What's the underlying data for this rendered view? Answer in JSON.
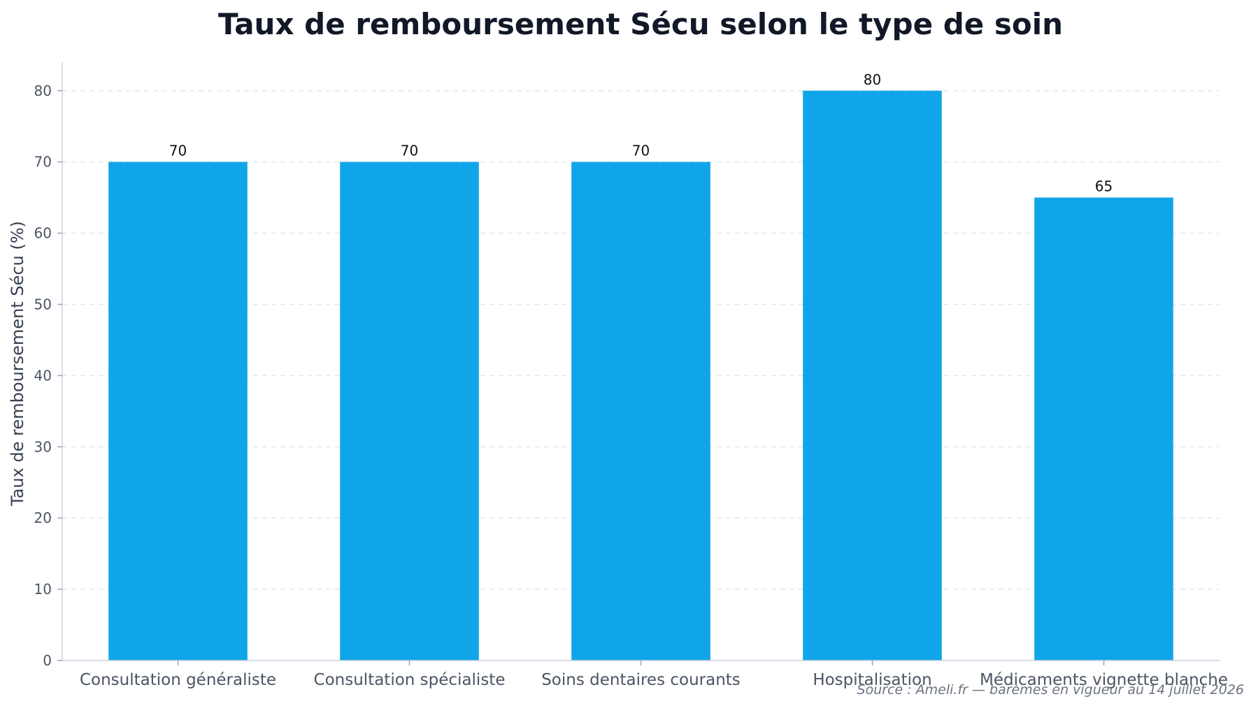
{
  "chart_data": {
    "type": "bar",
    "title": "Taux de remboursement Sécu selon le type de soin",
    "xlabel": "",
    "ylabel": "Taux de remboursement Sécu (%)",
    "categories": [
      "Consultation généraliste",
      "Consultation spécialiste",
      "Soins dentaires courants",
      "Hospitalisation",
      "Médicaments vignette blanche"
    ],
    "values": [
      70,
      70,
      70,
      80,
      65
    ],
    "value_labels": [
      "70",
      "70",
      "70",
      "80",
      "65"
    ],
    "ylim": [
      0,
      84
    ],
    "yticks": [
      0,
      10,
      20,
      30,
      40,
      50,
      60,
      70,
      80
    ],
    "ytick_labels": [
      "0",
      "10",
      "20",
      "30",
      "40",
      "50",
      "60",
      "70",
      "80"
    ],
    "grid": true,
    "bar_color": "#10a5e8",
    "source_note": "Source : Ameli.fr — barèmes en vigueur au 14 juillet 2026"
  }
}
